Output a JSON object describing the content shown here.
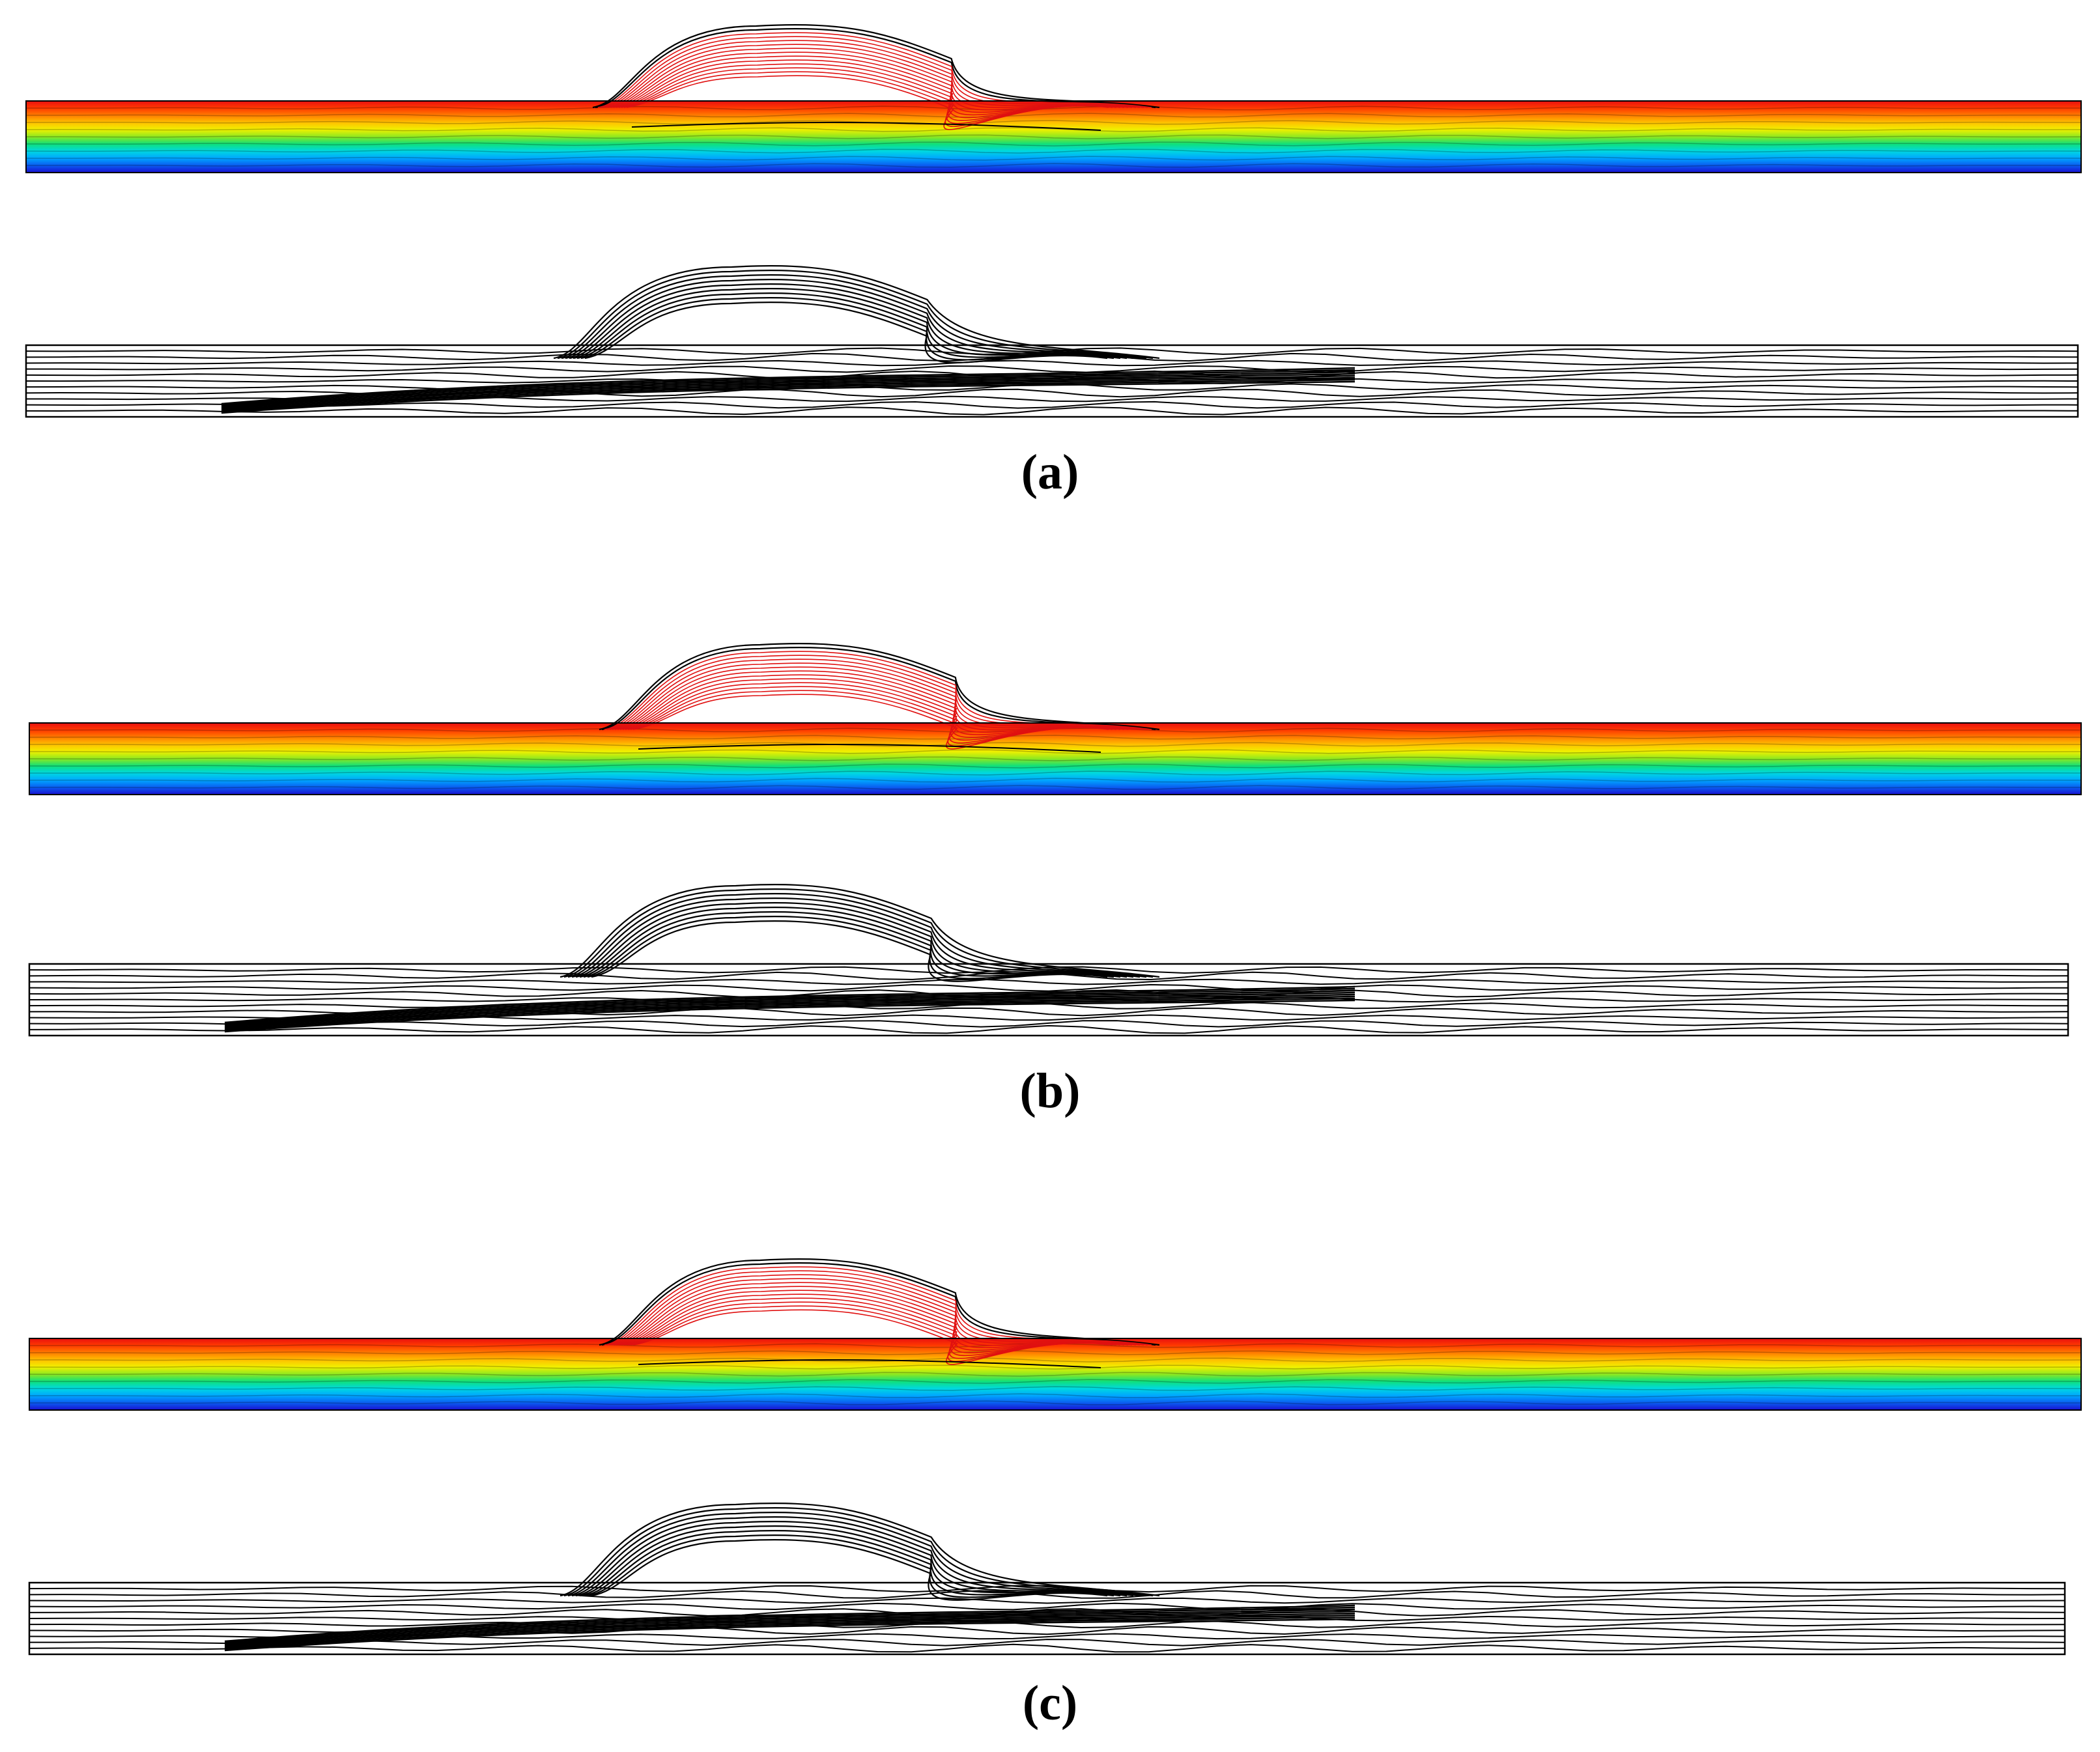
{
  "panels": [
    {
      "caption": "(a)"
    },
    {
      "caption": "(b)"
    },
    {
      "caption": "(c)"
    }
  ],
  "colors": {
    "colormap": [
      "#1a0fd0",
      "#0a5cf0",
      "#00a6ff",
      "#00d8e0",
      "#10e07a",
      "#8ee820",
      "#f0f000",
      "#ffc000",
      "#ff7c00",
      "#ff3a00",
      "#e81010"
    ],
    "contour_line": "#000000",
    "streamline_red": "#e01010",
    "background": "#ffffff"
  }
}
